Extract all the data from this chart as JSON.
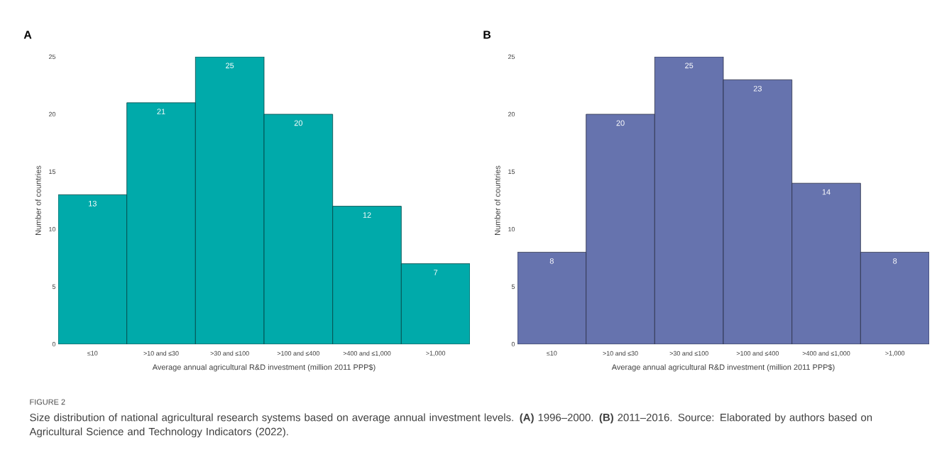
{
  "chart_data": [
    {
      "type": "bar",
      "title": "A",
      "xlabel": "Average annual agricultural R&D investment (million 2011 PPP$)",
      "ylabel": "Number of countries",
      "categories": [
        "≤10",
        ">10 and ≤30",
        ">30 and ≤100",
        ">100 and ≤400",
        ">400 and ≤1,000",
        ">1,000"
      ],
      "values": [
        13,
        21,
        25,
        20,
        12,
        7
      ],
      "color": "#00aaaa",
      "ylim": [
        0,
        25
      ],
      "yticks": [
        0,
        5,
        10,
        15,
        20,
        25
      ],
      "data_labels": true,
      "grid": false,
      "annotations": [
        "FIGURE 2",
        "Size distribution of national agricultural research systems based on average annual investment levels. **(A)** 1996–2000. **(B)** 2011–2016. Source: Elaborated by authors based on Agricultural Science and Technology Indicators (2022)."
      ]
    },
    {
      "type": "bar",
      "title": "B",
      "xlabel": "Average annual agricultural R&D investment (million 2011 PPP$)",
      "ylabel": "Number of countries",
      "categories": [
        "≤10",
        ">10 and ≤30",
        ">30 and ≤100",
        ">100 and ≤400",
        ">400 and ≤1,000",
        ">1,000"
      ],
      "values": [
        8,
        20,
        25,
        23,
        14,
        8
      ],
      "color": "#6673ae",
      "ylim": [
        0,
        25
      ],
      "yticks": [
        0,
        5,
        10,
        15,
        20,
        25
      ],
      "data_labels": true,
      "grid": false
    }
  ]
}
